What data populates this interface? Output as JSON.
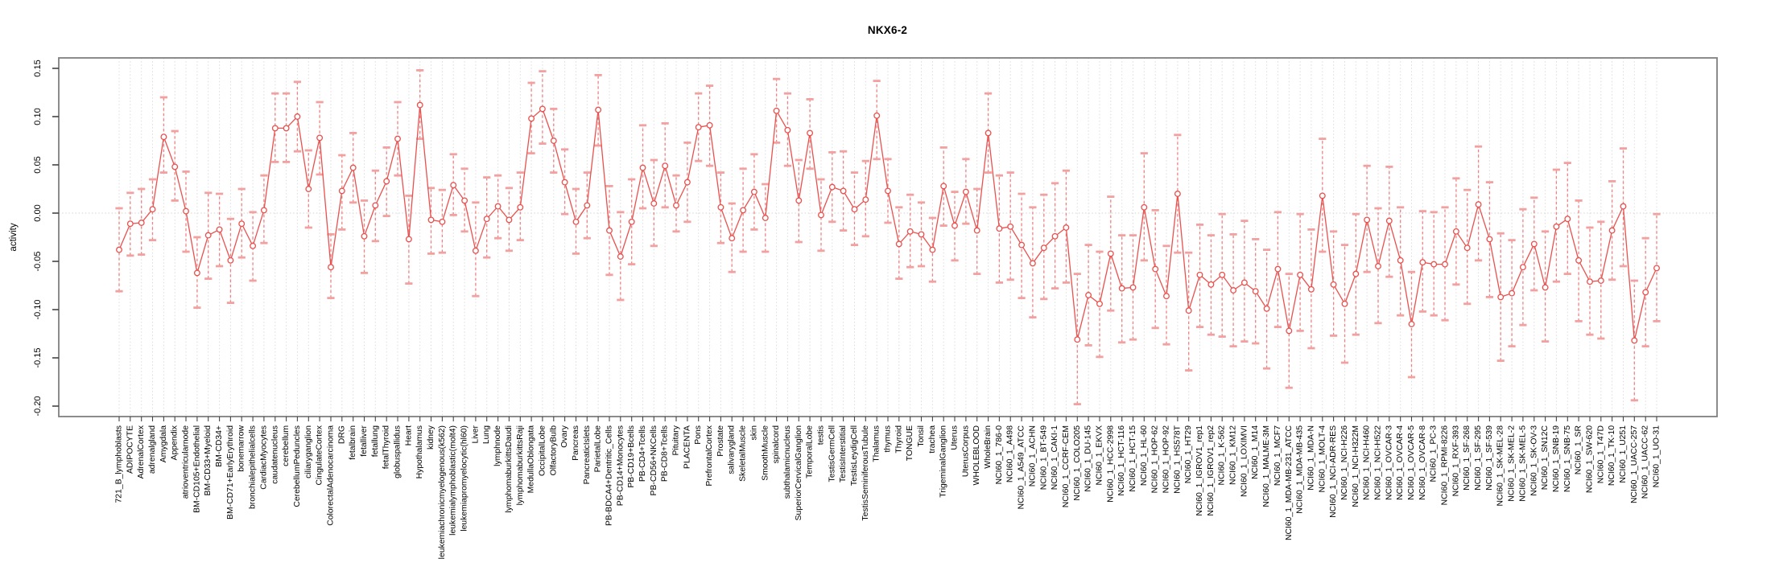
{
  "chart_data": {
    "type": "line",
    "title": "NKX6-2",
    "xlabel": "",
    "ylabel": "activity",
    "ylim": [
      -0.211,
      0.161
    ],
    "yticks": [
      0.15,
      0.1,
      0.05,
      0.0,
      -0.05,
      -0.1,
      -0.15,
      -0.2
    ],
    "grid": "vertical dotted line per category; horizontal dotted line at y=0",
    "legend_position": "none",
    "marker": "open-circle with error bars",
    "colors": {
      "series": "#e9514e",
      "errorbar_stem": "#ee8383",
      "errorbar_cap": "#f2a0a0",
      "grid": "#dcdcdc",
      "frame": "#7f7f7f",
      "tick": "#444444",
      "text": "#000000",
      "background": "#ffffff"
    },
    "categories": [
      "721_B_lymphoblasts",
      "ADIPOCYTE",
      "AdrenalCortex",
      "adrenalgland",
      "Amygdala",
      "Appendix",
      "atrioventricularnode",
      "BM-CD105+Endothelial",
      "BM-CD33+Myeloid",
      "BM-CD34+",
      "BM-CD71+EarlyErythroid",
      "bonemarrow",
      "bronchialepithelialcells",
      "CardiacMyocytes",
      "caudatenucleus",
      "cerebellum",
      "CerebellumPeduncles",
      "ciliaryganglion",
      "CingulateCortex",
      "ColorectalAdenocarcinoma",
      "DRG",
      "fetalbrain",
      "fetalliver",
      "fetallung",
      "fetalThyroid",
      "globuspallidus",
      "Heart",
      "Hypothalamus",
      "kidney",
      "leukemiachronicmyelogenous(k562)",
      "leukemialymphoblastic(molt4)",
      "leukemiapromyelocytic(hl60)",
      "Liver",
      "Lung",
      "lymphnode",
      "lymphomaburkittsDaudi",
      "lymphomaburkittsRaji",
      "MedullaOblongata",
      "OccipitalLobe",
      "OlfactoryBulb",
      "Ovary",
      "Pancreas",
      "PancreaticIslets",
      "ParietalLobe",
      "PB-BDCA4+Dentritic_Cells",
      "PB-CD14+Monocytes",
      "PB-CD19+Bcells",
      "PB-CD4+Tcells",
      "PB-CD56+NKCells",
      "PB-CD8+Tcells",
      "Pituitary",
      "PLACENTA",
      "Pons",
      "PrefrontalCortex",
      "Prostate",
      "salivarygland",
      "SkeletalMuscle",
      "skin",
      "SmoothMuscle",
      "spinalcord",
      "subthalamicnucleus",
      "SuperiorCervicalGanglion",
      "TemporalLobe",
      "testis",
      "TestisGermCell",
      "TestisInterstitial",
      "TestisLeydigCell",
      "TestisSeminiferousTubule",
      "Thalamus",
      "thymus",
      "Thyroid",
      "TONGUE",
      "Tonsil",
      "trachea",
      "TrigeminalGanglion",
      "Uterus",
      "UterusCorpus",
      "WHOLEBLOOD",
      "WholeBrain",
      "NCI60_1_786-0",
      "NCI60_1_A498",
      "NCI60_1_A549_ATCC",
      "NCI60_1_ACHN",
      "NCI60_1_BT-549",
      "NCI60_1_CAKI-1",
      "NCI60_1_CCRF-CEM",
      "NCI60_1_COLO205",
      "NCI60_1_DU-145",
      "NCI60_1_EKVX",
      "NCI60_1_HCC-2998",
      "NCI60_1_HCT-116",
      "NCI60_1_HCT-15",
      "NCI60_1_HL-60",
      "NCI60_1_HOP-62",
      "NCI60_1_HOP-92",
      "NCI60_1_HS578T",
      "NCI60_1_HT29",
      "NCI60_1_IGROV1_rep1",
      "NCI60_1_IGROV1_rep2",
      "NCI60_1_K-562",
      "NCI60_1_KM12",
      "NCI60_1_LOXIMVI",
      "NCI60_1_M14",
      "NCI60_1_MALME-3M",
      "NCI60_1_MCF7",
      "NCI60_1_MDA-MB-231_ATCC",
      "NCI60_1_MDA-MB-435",
      "NCI60_1_MDA-N",
      "NCI60_1_MOLT-4",
      "NCI60_1_NCI-ADR-RES",
      "NCI60_1_NCI-H226",
      "NCI60_1_NCI-H322M",
      "NCI60_1_NCI-H460",
      "NCI60_1_NCI-H522",
      "NCI60_1_OVCAR-3",
      "NCI60_1_OVCAR-4",
      "NCI60_1_OVCAR-5",
      "NCI60_1_OVCAR-8",
      "NCI60_1_PC-3",
      "NCI60_1_RPMI-8226",
      "NCI60_1_RXF-393",
      "NCI60_1_SF-268",
      "NCI60_1_SF-295",
      "NCI60_1_SF-539",
      "NCI60_1_SK-MEL-28",
      "NCI60_1_SK-MEL-2",
      "NCI60_1_SK-MEL-5",
      "NCI60_1_SK-OV-3",
      "NCI60_1_SN12C",
      "NCI60_1_SNB-19",
      "NCI60_1_SNB-75",
      "NCI60_1_SR",
      "NCI60_1_SW-620",
      "NCI60_1_T47D",
      "NCI60_1_TK-10",
      "NCI60_1_U251",
      "NCI60_1_UACC-257",
      "NCI60_1_UACC-62",
      "NCI60_1_UO-31"
    ],
    "series": [
      {
        "name": "activity",
        "values": [
          -0.038,
          -0.011,
          -0.01,
          0.004,
          0.079,
          0.048,
          0.002,
          -0.062,
          -0.023,
          -0.017,
          -0.049,
          -0.011,
          -0.034,
          0.003,
          0.088,
          0.088,
          0.1,
          0.025,
          0.078,
          -0.056,
          0.023,
          0.047,
          -0.024,
          0.008,
          0.033,
          0.077,
          -0.027,
          0.112,
          -0.007,
          -0.009,
          0.029,
          0.013,
          -0.039,
          -0.006,
          0.007,
          -0.007,
          0.006,
          0.098,
          0.108,
          0.075,
          0.032,
          -0.009,
          0.008,
          0.107,
          -0.018,
          -0.045,
          -0.009,
          0.047,
          0.01,
          0.049,
          0.008,
          0.032,
          0.089,
          0.091,
          0.006,
          -0.026,
          0.003,
          0.022,
          -0.005,
          0.106,
          0.086,
          0.013,
          0.083,
          -0.002,
          0.027,
          0.023,
          0.004,
          0.014,
          0.101,
          0.023,
          -0.032,
          -0.019,
          -0.022,
          -0.038,
          0.028,
          -0.013,
          0.022,
          -0.018,
          0.083,
          -0.016,
          -0.014,
          -0.033,
          -0.052,
          -0.036,
          -0.024,
          -0.015,
          -0.131,
          -0.085,
          -0.094,
          -0.042,
          -0.078,
          -0.077,
          0.006,
          -0.058,
          -0.086,
          0.02,
          -0.101,
          -0.064,
          -0.074,
          -0.064,
          -0.08,
          -0.072,
          -0.081,
          -0.099,
          -0.058,
          -0.122,
          -0.064,
          -0.079,
          0.018,
          -0.074,
          -0.094,
          -0.063,
          -0.007,
          -0.055,
          -0.008,
          -0.049,
          -0.115,
          -0.051,
          -0.053,
          -0.053,
          -0.019,
          -0.036,
          0.009,
          -0.027,
          -0.087,
          -0.083,
          -0.056,
          -0.032,
          -0.077,
          -0.014,
          -0.006,
          -0.049,
          -0.071,
          -0.07,
          -0.018,
          0.007,
          -0.132,
          -0.082,
          -0.057
        ],
        "lower": [
          -0.081,
          -0.044,
          -0.043,
          -0.028,
          0.042,
          0.013,
          -0.04,
          -0.098,
          -0.068,
          -0.055,
          -0.093,
          -0.046,
          -0.07,
          -0.031,
          0.053,
          0.053,
          0.064,
          -0.015,
          0.04,
          -0.088,
          -0.017,
          0.011,
          -0.062,
          -0.029,
          -0.003,
          0.039,
          -0.073,
          0.077,
          -0.042,
          -0.041,
          -0.002,
          -0.019,
          -0.086,
          -0.046,
          -0.026,
          -0.039,
          -0.028,
          0.062,
          0.072,
          0.042,
          -0.001,
          -0.042,
          -0.026,
          0.07,
          -0.064,
          -0.09,
          -0.053,
          0.005,
          -0.034,
          0.006,
          -0.019,
          -0.009,
          0.054,
          0.049,
          -0.031,
          -0.061,
          -0.04,
          -0.017,
          -0.04,
          0.073,
          0.049,
          -0.03,
          0.046,
          -0.039,
          -0.009,
          -0.018,
          -0.033,
          -0.024,
          0.056,
          -0.01,
          -0.068,
          -0.056,
          -0.055,
          -0.071,
          -0.013,
          -0.049,
          -0.011,
          -0.063,
          0.042,
          -0.072,
          -0.069,
          -0.088,
          -0.108,
          -0.089,
          -0.078,
          -0.072,
          -0.198,
          -0.137,
          -0.149,
          -0.101,
          -0.134,
          -0.131,
          -0.049,
          -0.119,
          -0.136,
          -0.041,
          -0.163,
          -0.118,
          -0.126,
          -0.128,
          -0.138,
          -0.133,
          -0.135,
          -0.161,
          -0.118,
          -0.181,
          -0.122,
          -0.14,
          -0.04,
          -0.127,
          -0.155,
          -0.126,
          -0.061,
          -0.114,
          -0.066,
          -0.106,
          -0.17,
          -0.102,
          -0.106,
          -0.111,
          -0.074,
          -0.094,
          -0.049,
          -0.087,
          -0.153,
          -0.138,
          -0.116,
          -0.08,
          -0.133,
          -0.071,
          -0.063,
          -0.112,
          -0.126,
          -0.13,
          -0.069,
          -0.055,
          -0.194,
          -0.138,
          -0.112
        ],
        "upper": [
          0.005,
          0.021,
          0.025,
          0.035,
          0.12,
          0.085,
          0.043,
          -0.025,
          0.021,
          0.02,
          -0.006,
          0.025,
          0.001,
          0.039,
          0.124,
          0.124,
          0.136,
          0.065,
          0.115,
          -0.022,
          0.06,
          0.083,
          0.013,
          0.044,
          0.068,
          0.115,
          0.018,
          0.148,
          0.026,
          0.024,
          0.061,
          0.046,
          0.011,
          0.037,
          0.039,
          0.026,
          0.042,
          0.135,
          0.147,
          0.108,
          0.066,
          0.025,
          0.042,
          0.143,
          0.028,
          0.001,
          0.035,
          0.091,
          0.055,
          0.093,
          0.039,
          0.073,
          0.124,
          0.132,
          0.042,
          0.01,
          0.046,
          0.061,
          0.03,
          0.139,
          0.124,
          0.055,
          0.118,
          0.035,
          0.063,
          0.064,
          0.042,
          0.054,
          0.137,
          0.056,
          0.006,
          0.019,
          0.011,
          -0.005,
          0.068,
          0.022,
          0.056,
          0.025,
          0.124,
          0.039,
          0.042,
          0.02,
          0.006,
          0.019,
          0.031,
          0.044,
          -0.063,
          -0.033,
          -0.04,
          0.017,
          -0.023,
          -0.023,
          0.062,
          0.003,
          -0.034,
          0.081,
          -0.041,
          -0.012,
          -0.023,
          -0.001,
          -0.022,
          -0.008,
          -0.027,
          -0.038,
          0.001,
          -0.063,
          -0.001,
          -0.017,
          0.077,
          -0.019,
          -0.033,
          -0.001,
          0.049,
          0.005,
          0.048,
          0.006,
          -0.061,
          0.002,
          0.001,
          0.006,
          0.036,
          0.024,
          0.069,
          0.032,
          -0.021,
          -0.028,
          0.004,
          0.016,
          -0.019,
          0.045,
          0.052,
          0.013,
          -0.015,
          -0.009,
          0.033,
          0.067,
          -0.07,
          -0.026,
          -0.001
        ]
      }
    ]
  }
}
